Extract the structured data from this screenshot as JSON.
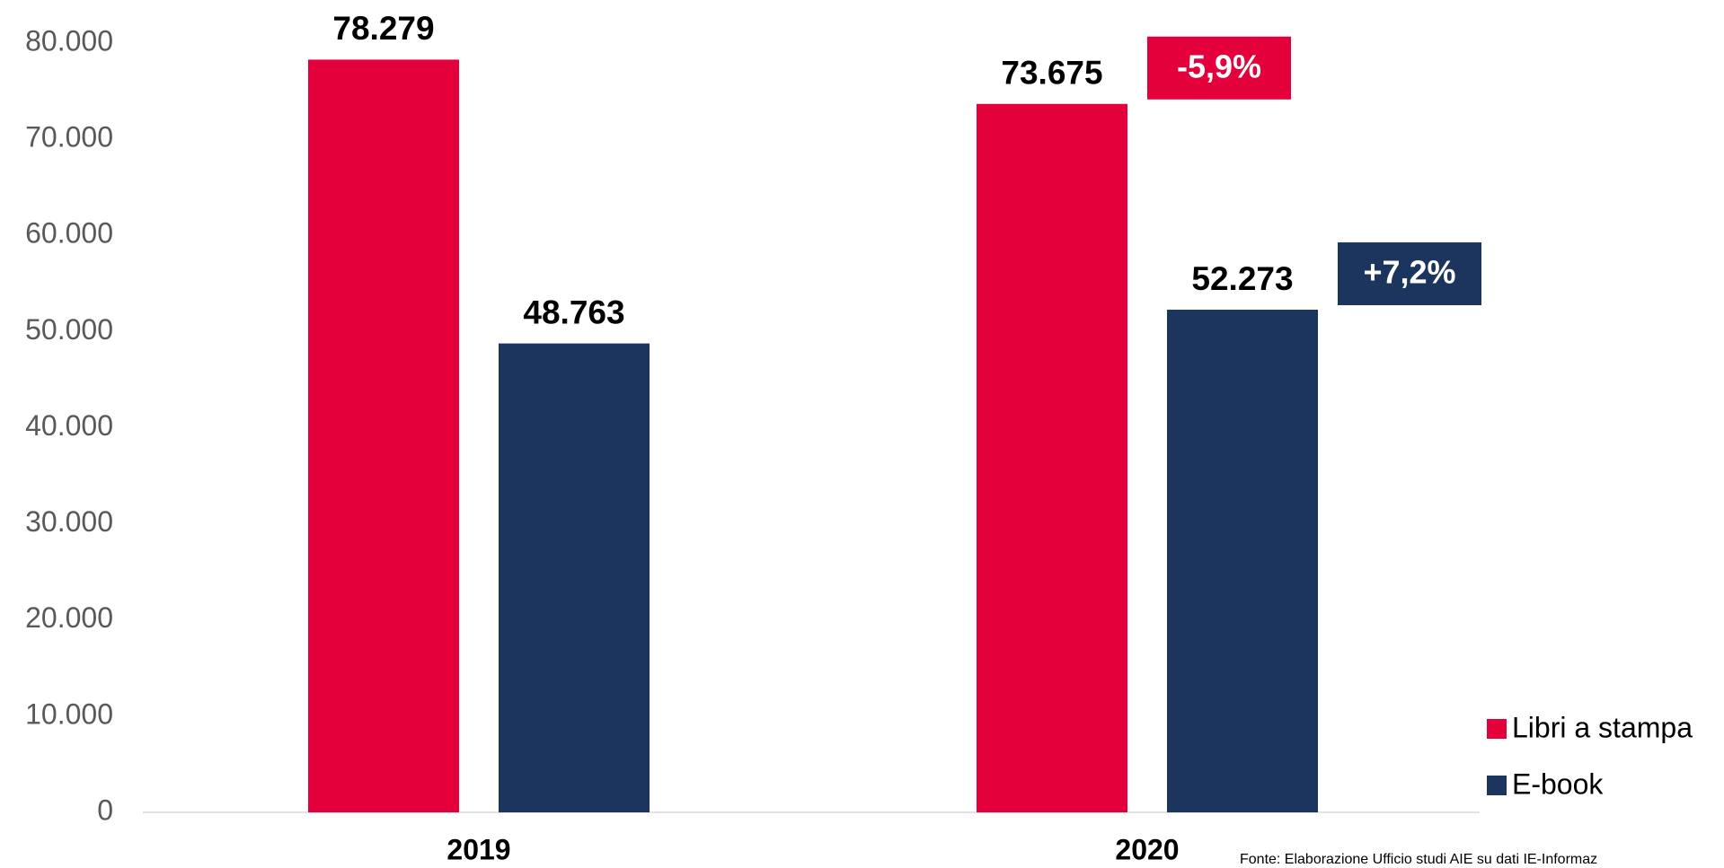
{
  "chart_data": {
    "type": "bar",
    "categories": [
      "2019",
      "2020"
    ],
    "series": [
      {
        "name": "Libri a stampa",
        "color": "#e4003b",
        "values": [
          78279,
          73675
        ],
        "value_labels": [
          "78.279",
          "73.675"
        ]
      },
      {
        "name": "E-book",
        "color": "#1c355e",
        "values": [
          48763,
          52273
        ],
        "value_labels": [
          "48.763",
          "52.273"
        ]
      }
    ],
    "ylim": [
      0,
      80000
    ],
    "yticks": [
      0,
      {
        "value": 10000,
        "label": "10.000"
      },
      {
        "value": 20000,
        "label": "20.000"
      },
      {
        "value": 30000,
        "label": "30.000"
      },
      {
        "value": 40000,
        "label": "40.000"
      },
      {
        "value": 50000,
        "label": "50.000"
      },
      {
        "value": 60000,
        "label": "60.000"
      },
      {
        "value": 70000,
        "label": "70.000"
      },
      {
        "value": 80000,
        "label": "80.000"
      }
    ],
    "grid": false,
    "legend": "lower right",
    "annotations": [
      {
        "text": "-5,9%",
        "series": 0,
        "category": 1
      },
      {
        "text": "+7,2%",
        "series": 1,
        "category": 1
      }
    ],
    "source": "Fonte:  Elaborazione Ufficio studi AIE su dati IE-Informaz"
  }
}
